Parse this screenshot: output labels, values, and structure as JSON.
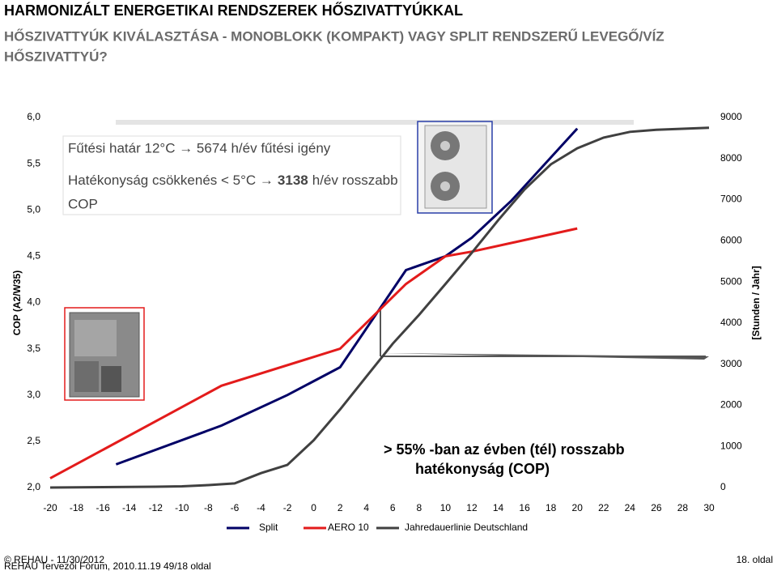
{
  "header": {
    "title": "HARMONIZÁLT ENERGETIKAI RENDSZEREK HŐSZIVATTYÚKKAL",
    "subtitle_lines": [
      "HŐSZIVATTYÚK KIVÁLASZTÁSA - MONOBLOKK (KOMPAKT) VAGY SPLIT RENDSZERŰ LEVEGŐ/VÍZ",
      "HŐSZIVATTYÚ?"
    ]
  },
  "chart_data": {
    "type": "line",
    "y_label": "COP (A2/W35)",
    "y2_label": "[Stunden / Jahr]",
    "xlim": [
      -20,
      30
    ],
    "xticks": [
      -20,
      -18,
      -16,
      -14,
      -12,
      -10,
      -8,
      -6,
      -4,
      -2,
      0,
      2,
      4,
      6,
      8,
      10,
      12,
      14,
      16,
      18,
      20,
      22,
      24,
      26,
      28,
      30
    ],
    "ylim": [
      2,
      6
    ],
    "yticks": [
      {
        "value": 2,
        "label": "2,0"
      },
      {
        "value": 2.5,
        "label": "2,5"
      },
      {
        "value": 3,
        "label": "3,0"
      },
      {
        "value": 3.5,
        "label": "3,5"
      },
      {
        "value": 4,
        "label": "4,0"
      },
      {
        "value": 4.5,
        "label": "4,5"
      },
      {
        "value": 5,
        "label": "5,0"
      },
      {
        "value": 5.5,
        "label": "5,5"
      },
      {
        "value": 6,
        "label": "6,0"
      }
    ],
    "y2lim": [
      0,
      9000
    ],
    "y2ticks": [
      0,
      1000,
      2000,
      3000,
      4000,
      5000,
      6000,
      7000,
      8000,
      9000
    ],
    "series": [
      {
        "name": "Split",
        "color": "#000066",
        "x": [
          -15,
          -7,
          -2,
          2,
          7,
          10,
          12,
          15,
          20
        ],
        "values": [
          2.25,
          2.67,
          3.0,
          3.3,
          4.35,
          4.5,
          4.7,
          5.1,
          5.88
        ]
      },
      {
        "name": "AERO 10",
        "color": "#e31b1b",
        "x": [
          -20,
          -7,
          2,
          7,
          10,
          12,
          20
        ],
        "values": [
          2.1,
          3.1,
          3.5,
          4.2,
          4.5,
          4.55,
          4.8
        ]
      },
      {
        "name": "Jahredauerlinie Deutschland",
        "color": "#404040",
        "axis": "y2",
        "x": [
          -20,
          -16,
          -12,
          -10,
          -8,
          -6,
          -4,
          -2,
          0,
          2,
          4,
          6,
          8,
          10,
          12,
          14,
          16,
          18,
          20,
          22,
          24,
          26,
          30
        ],
        "values": [
          0,
          10,
          20,
          30,
          60,
          100,
          350,
          550,
          1150,
          1900,
          2700,
          3500,
          4200,
          4950,
          5710,
          6500,
          7250,
          7860,
          8250,
          8510,
          8650,
          8700,
          8750
        ]
      }
    ]
  },
  "info_box": {
    "line1": "Fűtési határ 12°C → 5674 h/év fűtési igény",
    "line2_pre": "Hatékonyság csökkenés < 5°C →",
    "line2_bold": "3138",
    "line2_post": "h/év rosszabb",
    "line3": "COP"
  },
  "callout": {
    "lines": [
      "> 55% -ban az évben (tél) rosszabb",
      "hatékonyság (COP)"
    ]
  },
  "footer": {
    "copyright": "© REHAU - 11/30/2012",
    "event": "REHAU Tervezői Fórum, 2010.11.19 49/18 oldal",
    "page": "18. oldal"
  }
}
